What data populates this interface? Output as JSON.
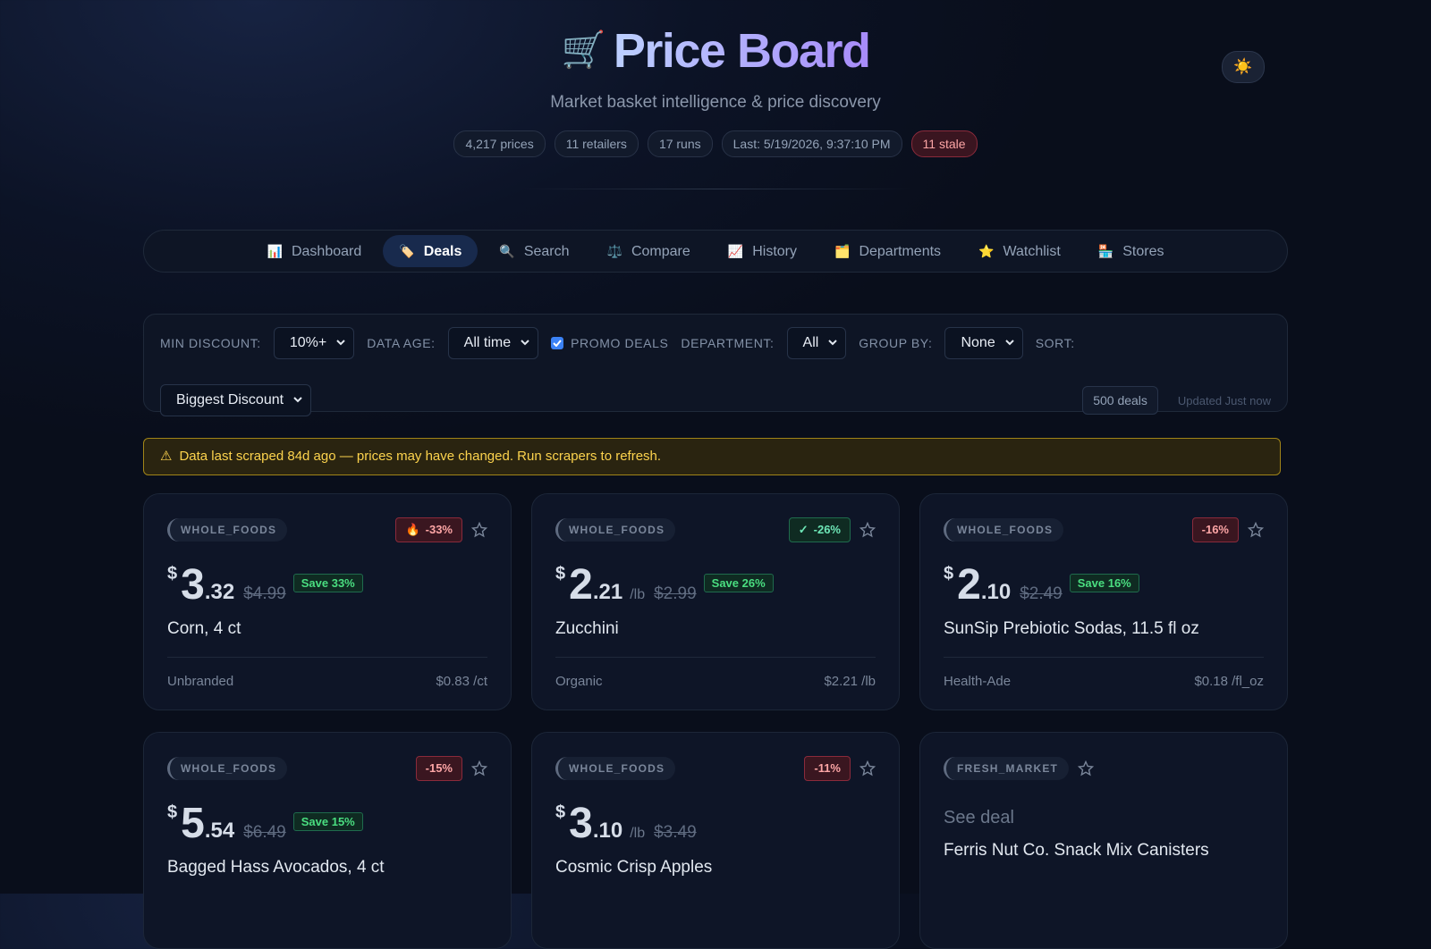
{
  "header": {
    "icon": "🛒",
    "title": "Price Board",
    "subtitle": "Market basket intelligence & price discovery",
    "stats": [
      "4,217 prices",
      "11 retailers",
      "17 runs",
      "Last: 5/19/2026, 9:37:10 PM"
    ],
    "stale": "11 stale",
    "theme_icon": "☀️"
  },
  "nav": [
    {
      "icon": "📊",
      "label": "Dashboard",
      "active": false
    },
    {
      "icon": "🏷️",
      "label": "Deals",
      "active": true
    },
    {
      "icon": "🔍",
      "label": "Search",
      "active": false
    },
    {
      "icon": "⚖️",
      "label": "Compare",
      "active": false
    },
    {
      "icon": "📈",
      "label": "History",
      "active": false
    },
    {
      "icon": "🗂️",
      "label": "Departments",
      "active": false
    },
    {
      "icon": "⭐",
      "label": "Watchlist",
      "active": false
    },
    {
      "icon": "🏪",
      "label": "Stores",
      "active": false
    }
  ],
  "filters": {
    "min_discount": {
      "label": "MIN DISCOUNT:",
      "value": "10%+"
    },
    "data_age": {
      "label": "DATA AGE:",
      "value": "All time"
    },
    "promo": {
      "label": "PROMO DEALS",
      "checked": true
    },
    "department": {
      "label": "DEPARTMENT:",
      "value": "All"
    },
    "group_by": {
      "label": "GROUP BY:",
      "value": "None"
    },
    "sort": {
      "label": "SORT:",
      "value": "Biggest Discount"
    },
    "count": "500 deals",
    "updated": "Updated Just now"
  },
  "warning": {
    "icon": "⚠",
    "text": "Data last scraped 84d ago — prices may have changed. Run scrapers to refresh."
  },
  "cards": [
    {
      "retailer": "WHOLE_FOODS",
      "badge": {
        "icon": "🔥",
        "text": "-33%",
        "tone": "red"
      },
      "currency": "$",
      "dollars": "3",
      "cents": ".32",
      "was": "$4.99",
      "save": "Save 33%",
      "name": "Corn, 4 ct",
      "brand": "Unbranded",
      "unit_price": "$0.83 /ct"
    },
    {
      "retailer": "WHOLE_FOODS",
      "badge": {
        "icon": "✓",
        "text": "-26%",
        "tone": "green"
      },
      "currency": "$",
      "dollars": "2",
      "cents": ".21",
      "unit": "/lb",
      "was": "$2.99",
      "save": "Save 26%",
      "name": "Zucchini",
      "brand": "Organic",
      "unit_price": "$2.21 /lb"
    },
    {
      "retailer": "WHOLE_FOODS",
      "badge": {
        "text": "-16%",
        "tone": "red"
      },
      "currency": "$",
      "dollars": "2",
      "cents": ".10",
      "was": "$2.49",
      "save": "Save 16%",
      "name": "SunSip Prebiotic Sodas, 11.5 fl oz",
      "brand": "Health-Ade",
      "unit_price": "$0.18 /fl_oz"
    },
    {
      "retailer": "WHOLE_FOODS",
      "badge": {
        "text": "-15%",
        "tone": "red"
      },
      "currency": "$",
      "dollars": "5",
      "cents": ".54",
      "was": "$6.49",
      "save": "Save 15%",
      "name": "Bagged Hass Avocados, 4 ct"
    },
    {
      "retailer": "WHOLE_FOODS",
      "badge": {
        "text": "-11%",
        "tone": "red"
      },
      "currency": "$",
      "dollars": "3",
      "cents": ".10",
      "unit": "/lb",
      "was": "$3.49",
      "name": "Cosmic Crisp Apples"
    },
    {
      "retailer": "FRESH_MARKET",
      "see_deal": "See deal",
      "name": "Ferris Nut Co. Snack Mix Canisters"
    }
  ]
}
